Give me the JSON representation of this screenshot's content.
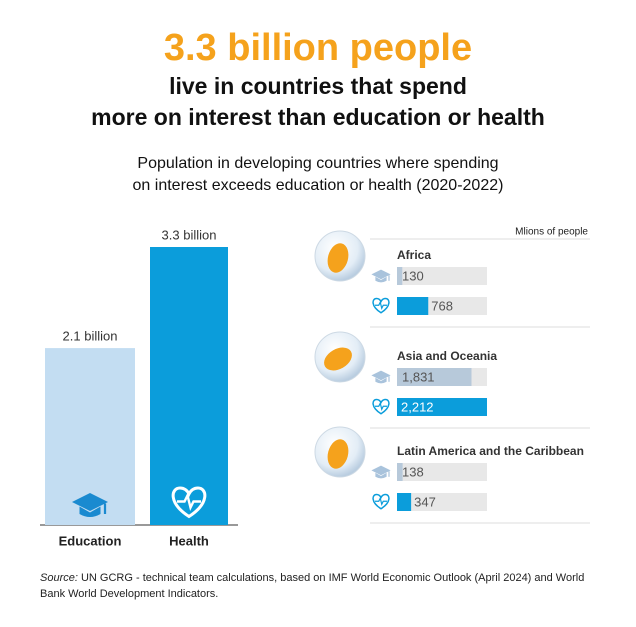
{
  "header": {
    "title": "3.3 billion people",
    "subtitle": [
      "live in countries that spend",
      "more on interest than education or health"
    ]
  },
  "chart_data": [
    {
      "type": "bar",
      "title": [
        "Population in developing countries where spending",
        "on interest exceeds education or health (2020-2022)"
      ],
      "categories": [
        "Education",
        "Health"
      ],
      "values": [
        2.1,
        3.3
      ],
      "value_labels": [
        "2.1 billion",
        "3.3 billion"
      ],
      "colors": [
        "#c3ddf2",
        "#0b9ddb"
      ]
    },
    {
      "type": "hbar",
      "unit_label": "Mlions of people",
      "categories": [
        "Africa",
        "Asia and Oceania",
        "Latin America and the Caribbean"
      ],
      "series": [
        {
          "color": "#b7c9da",
          "values": [
            130,
            1831,
            138
          ],
          "value_labels": [
            "130",
            "1,831",
            "138"
          ]
        },
        {
          "color": "#0b9ddb",
          "values": [
            768,
            2212,
            347
          ],
          "value_labels": [
            "768",
            "2,212",
            "347"
          ]
        }
      ]
    }
  ],
  "source": {
    "label": "Source:",
    "text": "UN GCRG - technical team calculations, based on IMF World Economic Outlook (April 2024) and World",
    "text2": "Bank World Development Indicators."
  }
}
